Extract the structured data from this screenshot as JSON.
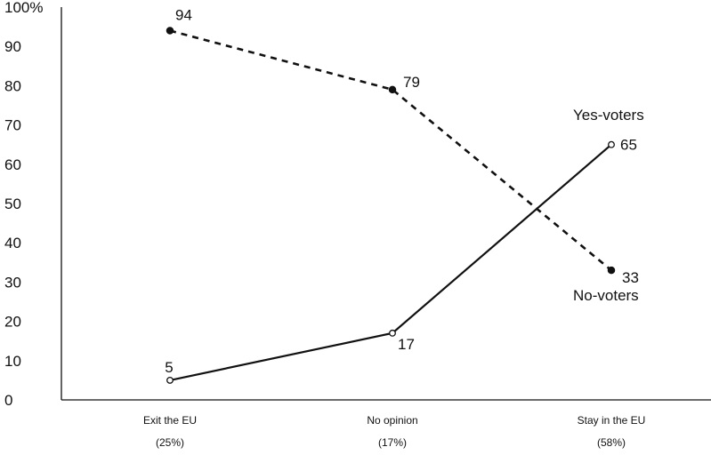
{
  "chart_data": {
    "type": "line",
    "title": "",
    "xlabel": "",
    "ylabel": "",
    "ylim": [
      0,
      100
    ],
    "y_ticks": [
      0,
      10,
      20,
      30,
      40,
      50,
      60,
      70,
      80,
      90,
      100
    ],
    "y_tick_labels": [
      "0",
      "10",
      "20",
      "30",
      "40",
      "50",
      "60",
      "70",
      "80",
      "90",
      "100%"
    ],
    "categories": [
      "Exit the EU",
      "No opinion",
      "Stay in the EU"
    ],
    "category_shares": [
      "(25%)",
      "(17%)",
      "(58%)"
    ],
    "grid": false,
    "legend": "none",
    "series": [
      {
        "name": "No-voters",
        "values": [
          94,
          79,
          33
        ],
        "line_style": "dashed",
        "marker": "filled-circle",
        "color": "#111111"
      },
      {
        "name": "Yes-voters",
        "values": [
          5,
          17,
          65
        ],
        "line_style": "solid",
        "marker": "open-circle",
        "color": "#111111"
      }
    ]
  }
}
